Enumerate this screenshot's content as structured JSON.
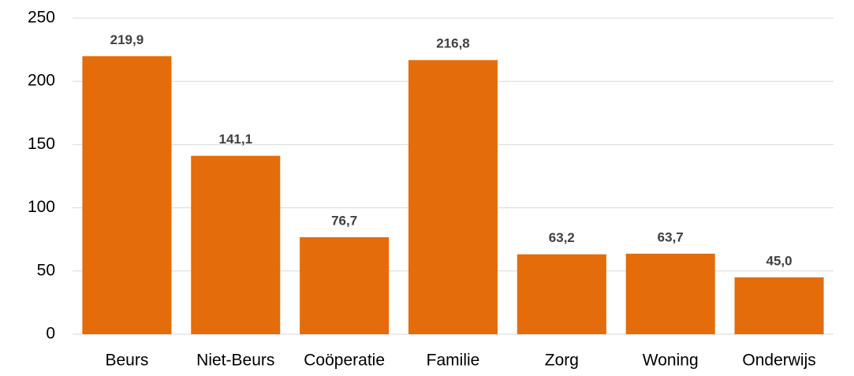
{
  "chart_data": {
    "type": "bar",
    "categories": [
      "Beurs",
      "Niet-Beurs",
      "Coöperatie",
      "Familie",
      "Zorg",
      "Woning",
      "Onderwijs"
    ],
    "values": [
      219.9,
      141.1,
      76.7,
      216.8,
      63.2,
      63.7,
      45.0
    ],
    "value_labels": [
      "219,9",
      "141,1",
      "76,7",
      "216,8",
      "63,2",
      "63,7",
      "45,0"
    ],
    "color": "#e46c0a",
    "ylim": [
      0,
      250
    ],
    "yticks": [
      0,
      50,
      100,
      150,
      200,
      250
    ],
    "grid": true
  }
}
